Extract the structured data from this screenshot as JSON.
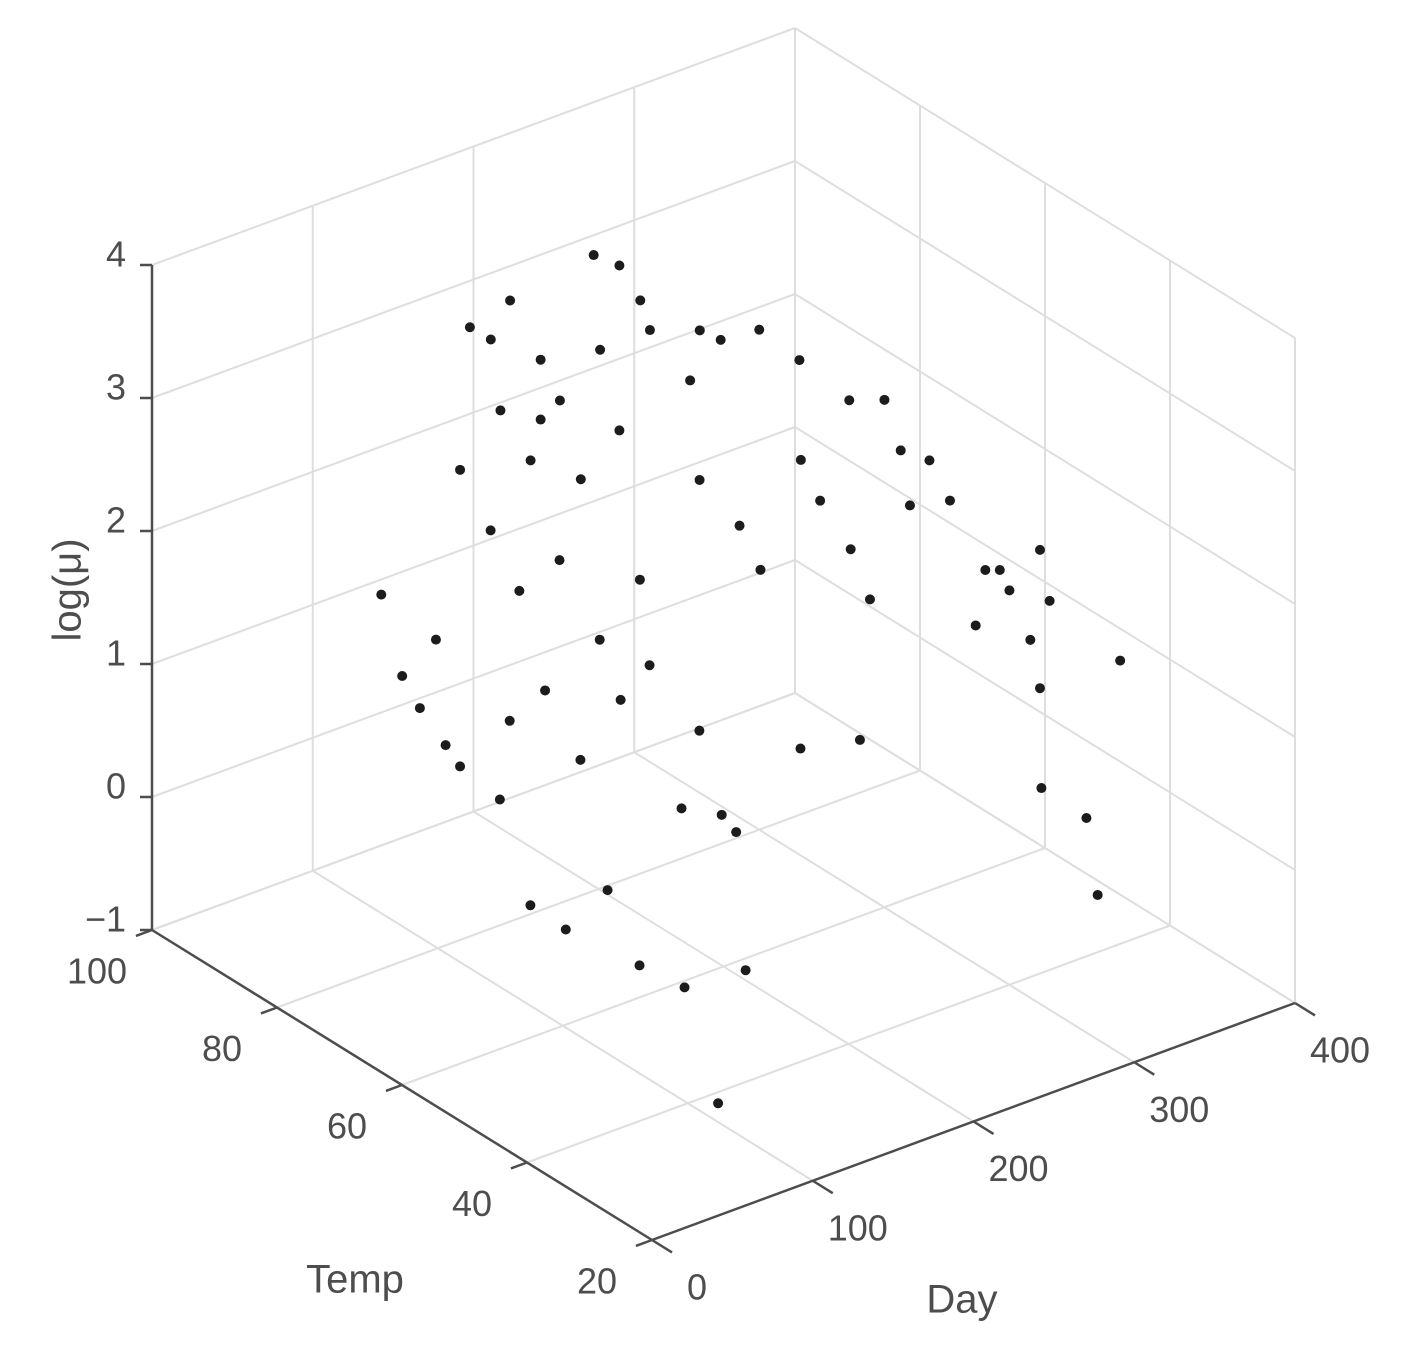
{
  "chart_data": {
    "type": "scatter3d",
    "xlabel": "Day",
    "ylabel": "Temp",
    "zlabel": "log(μ)",
    "x": [
      120,
      145,
      197,
      213,
      226,
      263,
      300,
      325,
      356,
      388,
      302,
      333,
      358,
      364,
      369,
      348,
      355,
      320,
      26,
      39,
      50,
      66,
      75,
      60,
      80,
      98,
      123,
      136,
      111,
      89,
      67,
      154,
      185,
      22,
      41,
      63,
      89,
      70,
      98,
      80,
      136,
      160,
      169,
      135,
      287,
      318,
      246,
      209,
      330,
      223,
      210,
      324,
      339,
      318,
      352,
      358,
      316,
      367,
      339,
      164,
      176,
      201,
      232,
      276,
      257,
      213,
      189,
      164,
      139,
      133,
      75,
      94,
      73,
      148,
      224,
      299
    ],
    "y": [
      80,
      80,
      80,
      80,
      80,
      80,
      80,
      80,
      80,
      80,
      50,
      50,
      50,
      50,
      40,
      40,
      40,
      40,
      70,
      70,
      70,
      70,
      70,
      70,
      60,
      60,
      60,
      60,
      60,
      60,
      60,
      60,
      60,
      50,
      50,
      50,
      50,
      40,
      40,
      30,
      40,
      50,
      50,
      50,
      70,
      70,
      50,
      50,
      70,
      60,
      60,
      50,
      50,
      50,
      50,
      50,
      60,
      70,
      70,
      80,
      80,
      80,
      80,
      80,
      80,
      80,
      80,
      80,
      80,
      80,
      70,
      70,
      60,
      60,
      70,
      70
    ],
    "z": [
      3.58,
      3.67,
      3.78,
      3.63,
      3.31,
      2.92,
      2.76,
      2.42,
      1.98,
      1.46,
      2.34,
      1.68,
      1.72,
      1.31,
      1.13,
      0.04,
      -0.57,
      0.39,
      2.28,
      1.61,
      1.32,
      0.97,
      0.77,
      1.79,
      3.34,
      2.51,
      1.8,
      1.29,
      0.95,
      1.57,
      1.44,
      1.47,
      0.84,
      1.34,
      0.46,
      0.18,
      0.36,
      0.17,
      -0.12,
      -0.62,
      -0.16,
      0.61,
      0.44,
      0.77,
      2.13,
      1.32,
      0.79,
      0.89,
      0.89,
      1.88,
      2.27,
      1.72,
      1.5,
      1.33,
      1.07,
      0.68,
      1.95,
      1.77,
      2.35,
      3.14,
      2.78,
      3.05,
      3.06,
      2.79,
      2.57,
      2.39,
      2.13,
      2.69,
      2.87,
      3.43,
      3,
      2.46,
      2.39,
      2.14,
      2.26,
      1.77
    ],
    "color": "#1c1c1c",
    "xlim": [
      0,
      400
    ],
    "xticks": [
      0,
      100,
      200,
      300,
      400
    ],
    "ylim": [
      20,
      100
    ],
    "yticks": [
      20,
      40,
      60,
      80,
      100
    ],
    "zlim": [
      -1,
      4
    ],
    "zticks": [
      {
        "value": -1,
        "label": "−1"
      },
      0,
      1,
      2,
      3,
      4
    ],
    "grid": true
  }
}
